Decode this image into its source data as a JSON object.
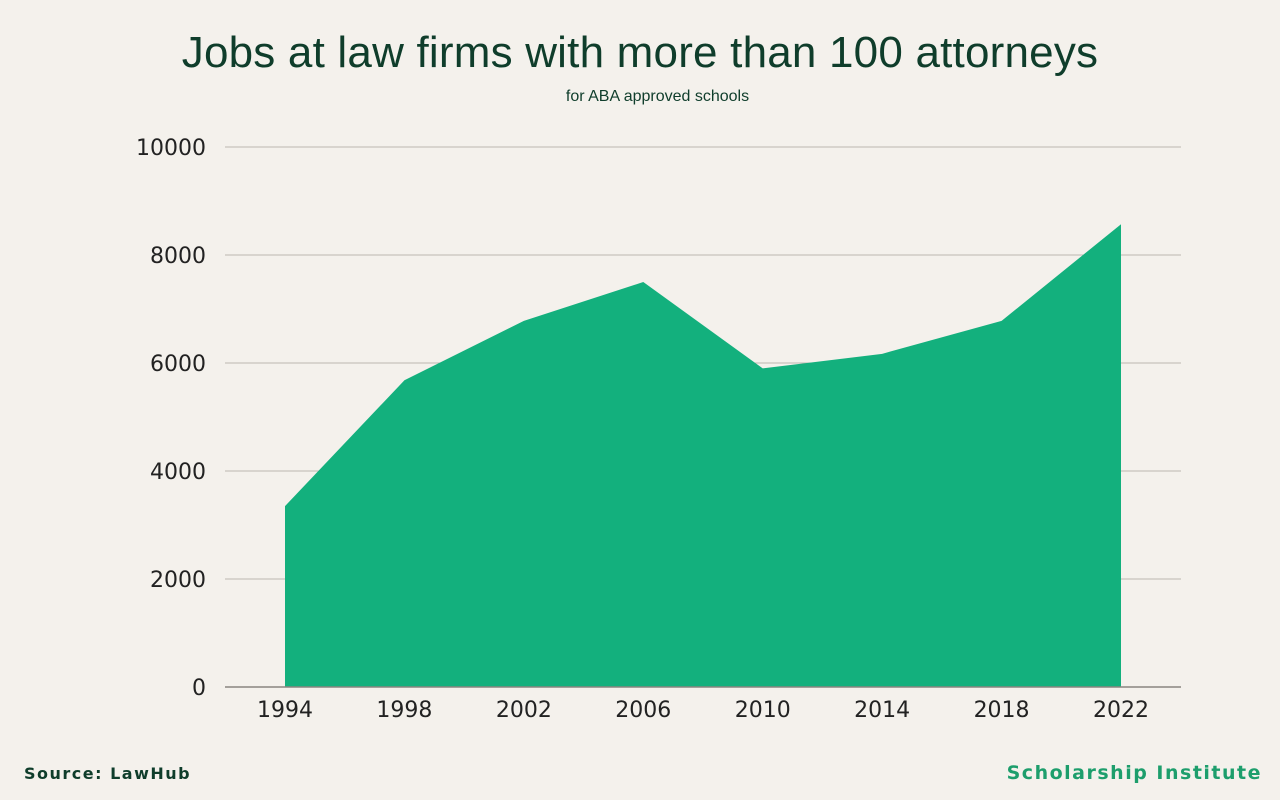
{
  "header": {
    "title": "Jobs at law firms with more than 100 attorneys",
    "subtitle": "for ABA approved schools"
  },
  "footer": {
    "source": "Source: LawHub",
    "brand": "Scholarship Institute",
    "brand_color": "#1d9e6c"
  },
  "colors": {
    "area_fill": "#13b07d",
    "grid": "#bdb8b1",
    "axis": "#8a8580",
    "title": "#0f3d2b"
  },
  "chart_data": {
    "type": "area",
    "title": "Jobs at law firms with more than 100 attorneys",
    "subtitle": "for ABA approved schools",
    "xlabel": "",
    "ylabel": "",
    "x": [
      "1994",
      "1998",
      "2002",
      "2006",
      "2010",
      "2014",
      "2018",
      "2022"
    ],
    "series": [
      {
        "values": [
          3350,
          5680,
          6780,
          7500,
          5900,
          6170,
          6780,
          8570
        ]
      }
    ],
    "ylim": [
      0,
      10000
    ],
    "yticks": [
      "0",
      "2000",
      "4000",
      "6000",
      "8000",
      "10000"
    ],
    "grid": true,
    "legend": "none"
  }
}
